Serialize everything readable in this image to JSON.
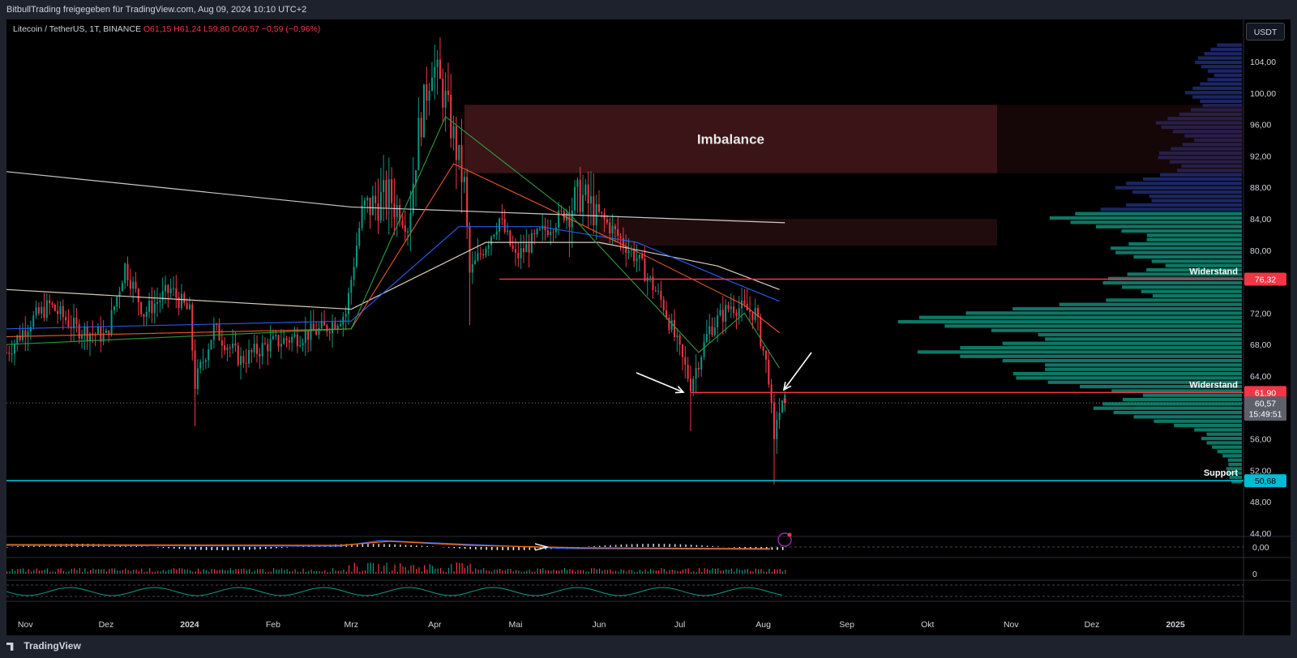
{
  "header": {
    "share_text": "BitbullTrading freigegeben für TradingView.com, Aug 09, 2024 10:10 UTC+2"
  },
  "legend": {
    "symbol": "Litecoin / TetherUS, 1T, BINANCE",
    "open": "O61,15",
    "high": "H61,24",
    "low": "L59,80",
    "close": "C60,57",
    "change": "−0,59 (−0,96%)"
  },
  "toolbar": {
    "currency": "USDT"
  },
  "brand": {
    "name": "TradingView"
  },
  "colors": {
    "up": "#089981",
    "down": "#f23645",
    "resistance": "#f23645",
    "support": "#00bcd4",
    "imbalance": "#3d1518",
    "volume_profile_up": "#0f7d6a",
    "volume_profile_down": "#1f2a6e",
    "ema_green": "#2ea043",
    "ema_orange": "#f0592b",
    "ema_blue": "#2962ff",
    "sma_white": "#e0e0e0"
  },
  "annotations": {
    "imbalance_label": "Imbalance",
    "resistance_upper_label": "Widerstand",
    "resistance_lower_label": "Widerstand",
    "support_label": "Support"
  },
  "price_tags": {
    "resistance_upper": "76,32",
    "resistance_lower": "61,90",
    "last_price": "60,57",
    "countdown": "15:49:51",
    "support": "50,68"
  },
  "oscillator_labels": {
    "macd_zero": "0,00",
    "volume_zero": "0"
  },
  "chart_data": {
    "type": "candlestick",
    "title": "Litecoin / TetherUS, 1T, BINANCE",
    "y_axis": {
      "ticks": [
        "104,00",
        "100,00",
        "96,00",
        "92,00",
        "88,00",
        "84,00",
        "80,00",
        "76,00",
        "72,00",
        "68,00",
        "64,00",
        "60,00",
        "56,00",
        "52,00",
        "48,00",
        "44,00"
      ],
      "range": [
        41,
        107
      ]
    },
    "x_axis": {
      "ticks": [
        "Nov",
        "Dez",
        "2024",
        "Feb",
        "Mrz",
        "Apr",
        "Mai",
        "Jun",
        "Jul",
        "Aug",
        "Sep",
        "Okt",
        "Nov",
        "Dez",
        "2025"
      ]
    },
    "price_path": [
      [
        "2023-10-25",
        67
      ],
      [
        "2023-11-03",
        71
      ],
      [
        "2023-11-10",
        73
      ],
      [
        "2023-11-20",
        70
      ],
      [
        "2023-12-01",
        69
      ],
      [
        "2023-12-08",
        78
      ],
      [
        "2023-12-15",
        72
      ],
      [
        "2023-12-25",
        75
      ],
      [
        "2024-01-01",
        72
      ],
      [
        "2024-01-03",
        63
      ],
      [
        "2024-01-10",
        70
      ],
      [
        "2024-01-20",
        66
      ],
      [
        "2024-01-30",
        68
      ],
      [
        "2024-02-10",
        69
      ],
      [
        "2024-02-20",
        70
      ],
      [
        "2024-02-28",
        72
      ],
      [
        "2024-03-05",
        85
      ],
      [
        "2024-03-15",
        87
      ],
      [
        "2024-03-22",
        83
      ],
      [
        "2024-03-26",
        95
      ],
      [
        "2024-03-31",
        104
      ],
      [
        "2024-04-05",
        99
      ],
      [
        "2024-04-12",
        88
      ],
      [
        "2024-04-14",
        77
      ],
      [
        "2024-04-25",
        84
      ],
      [
        "2024-05-01",
        79
      ],
      [
        "2024-05-10",
        82
      ],
      [
        "2024-05-20",
        85
      ],
      [
        "2024-05-25",
        87
      ],
      [
        "2024-06-05",
        83
      ],
      [
        "2024-06-15",
        79
      ],
      [
        "2024-06-25",
        73
      ],
      [
        "2024-07-05",
        63
      ],
      [
        "2024-07-12",
        70
      ],
      [
        "2024-07-20",
        73
      ],
      [
        "2024-07-29",
        72
      ],
      [
        "2024-08-03",
        64
      ],
      [
        "2024-08-05",
        55
      ],
      [
        "2024-08-06",
        59
      ],
      [
        "2024-08-09",
        60.57
      ]
    ],
    "last": {
      "open": 61.15,
      "high": 61.24,
      "low": 59.8,
      "close": 60.57
    },
    "levels": [
      {
        "name": "Widerstand",
        "value": 76.32,
        "start": "2024-04-25"
      },
      {
        "name": "Widerstand",
        "value": 61.9,
        "start": "2024-07-05"
      },
      {
        "name": "Support",
        "value": 50.68,
        "start": "2023-10-25"
      }
    ],
    "zones": [
      {
        "name": "Imbalance",
        "low": 89.8,
        "high": 98.5,
        "start": "2024-04-12"
      },
      {
        "name": "",
        "low": 80.6,
        "high": 84.0,
        "start": "2024-06-01"
      }
    ],
    "indicators": [
      {
        "type": "sma",
        "color": "white",
        "path": [
          [
            "2023-10-25",
            90
          ],
          [
            "2024-03-01",
            85.5
          ],
          [
            "2024-08-09",
            83.5
          ]
        ]
      },
      {
        "type": "sma",
        "color": "cream",
        "path": [
          [
            "2023-10-25",
            75
          ],
          [
            "2024-03-01",
            72.5
          ],
          [
            "2024-04-20",
            81
          ],
          [
            "2024-06-01",
            81
          ],
          [
            "2024-07-15",
            78
          ],
          [
            "2024-08-07",
            75
          ]
        ]
      },
      {
        "type": "ema",
        "color": "blue",
        "path": [
          [
            "2023-10-25",
            70
          ],
          [
            "2024-03-01",
            71
          ],
          [
            "2024-04-10",
            83
          ],
          [
            "2024-05-10",
            83
          ],
          [
            "2024-06-15",
            81
          ],
          [
            "2024-07-20",
            76
          ],
          [
            "2024-08-07",
            73.5
          ]
        ]
      },
      {
        "type": "ema",
        "color": "orange",
        "path": [
          [
            "2023-10-25",
            69
          ],
          [
            "2024-03-01",
            70
          ],
          [
            "2024-04-08",
            91
          ],
          [
            "2024-05-15",
            85
          ],
          [
            "2024-06-20",
            79
          ],
          [
            "2024-07-25",
            73
          ],
          [
            "2024-08-07",
            69.5
          ]
        ]
      },
      {
        "type": "ema",
        "color": "green",
        "path": [
          [
            "2023-10-25",
            68
          ],
          [
            "2024-03-01",
            70
          ],
          [
            "2024-04-05",
            97
          ],
          [
            "2024-05-20",
            85
          ],
          [
            "2024-07-08",
            67
          ],
          [
            "2024-07-25",
            72
          ],
          [
            "2024-08-07",
            65
          ]
        ]
      }
    ],
    "volume_profile": "right-side horizontal histogram, teal below ~85, dark blue above",
    "legend_position": "top-left",
    "grid": false
  }
}
